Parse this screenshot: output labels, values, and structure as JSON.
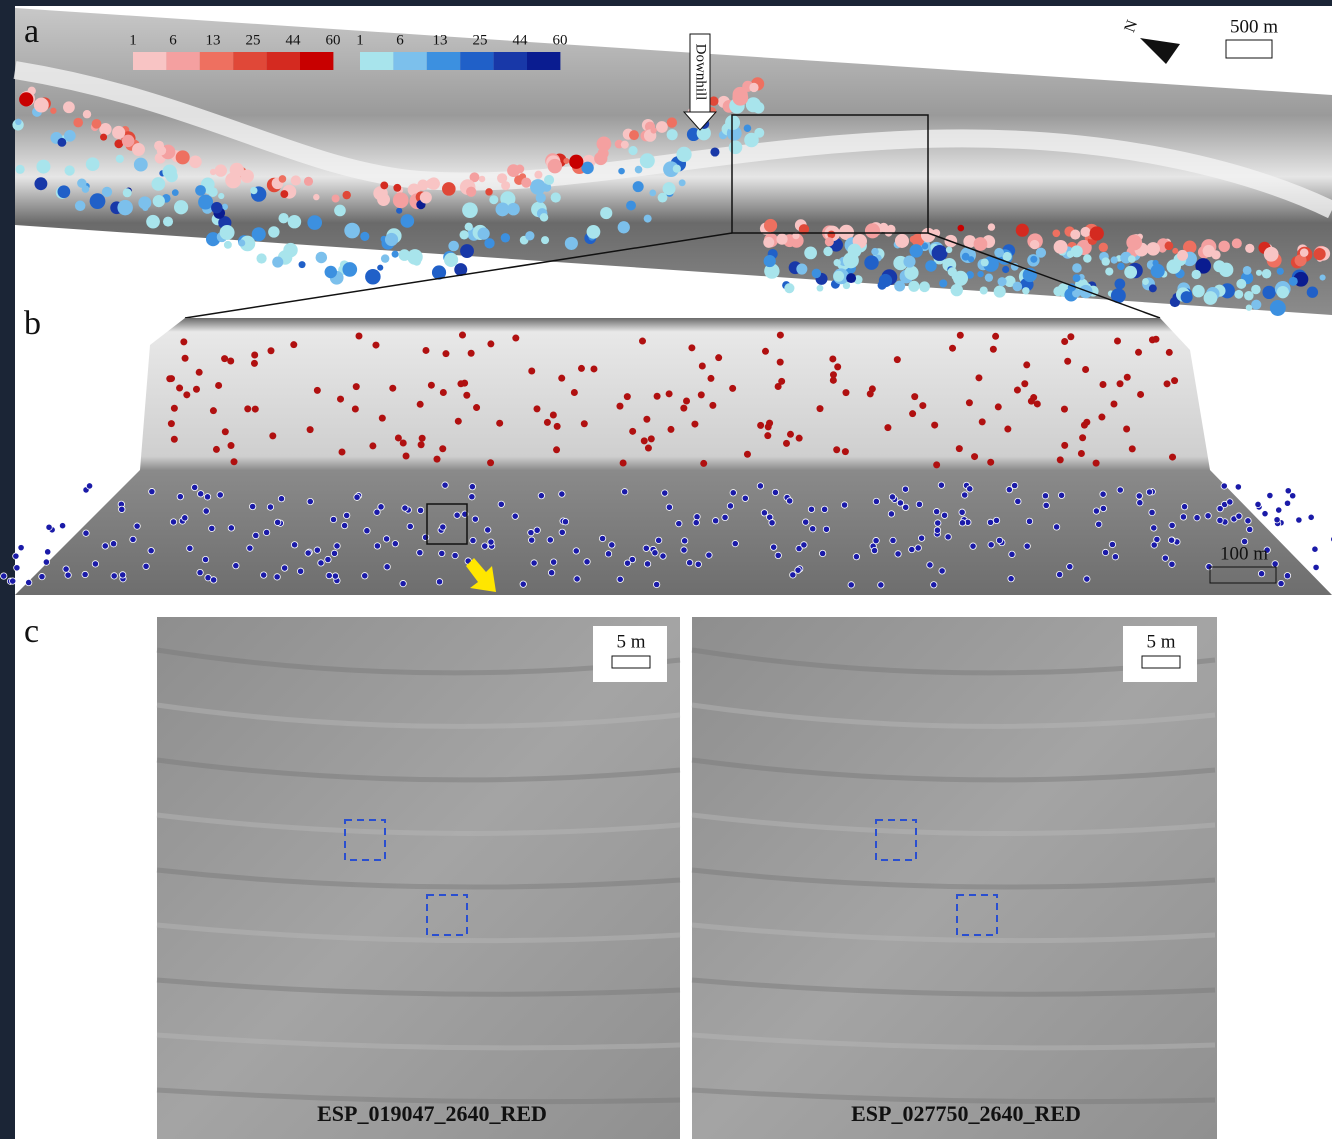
{
  "panels": {
    "a": {
      "label": "a",
      "legend": {
        "red_labels": [
          "1",
          "6",
          "13",
          "25",
          "44",
          "60"
        ],
        "blue_labels": [
          "1",
          "6",
          "13",
          "25",
          "44",
          "60"
        ]
      },
      "downhill": "Downhill",
      "north": "N",
      "scale": "500 m"
    },
    "b": {
      "label": "b",
      "scale": "100 m"
    },
    "c": {
      "label": "c",
      "left": {
        "scale": "5 m",
        "caption": "ESP_019047_2640_RED"
      },
      "right": {
        "scale": "5 m",
        "caption": "ESP_027750_2640_RED"
      }
    }
  }
}
